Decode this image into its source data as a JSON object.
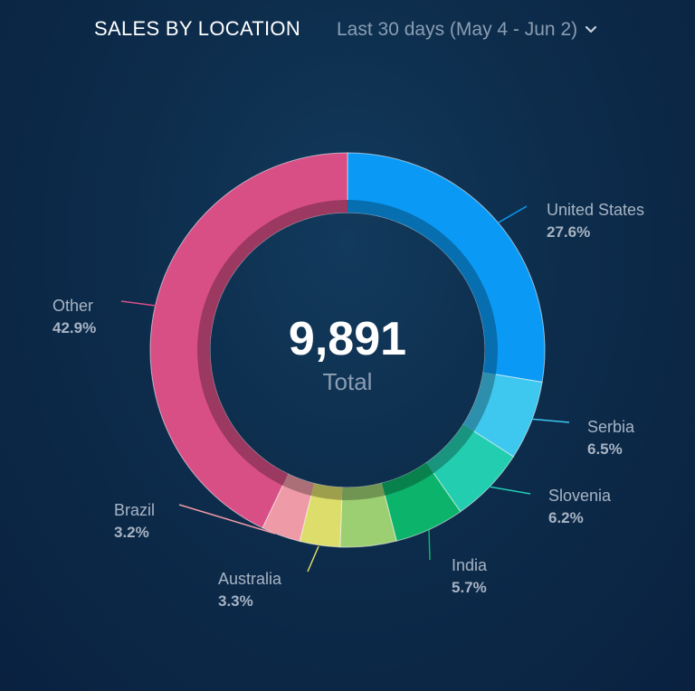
{
  "header": {
    "title": "SALES BY LOCATION",
    "date_range": "Last 30 days (May 4 - Jun 2)",
    "dropdown_icon": "chevron-down-icon"
  },
  "center": {
    "value": "9,891",
    "label": "Total"
  },
  "chart_data": {
    "type": "pie",
    "style": "donut",
    "total": 9891,
    "slices": [
      {
        "name": "United States",
        "label": "27.6%",
        "value": 27.6,
        "color": "#0a9af5"
      },
      {
        "name": "Serbia",
        "label": "6.5%",
        "value": 6.5,
        "color": "#3ec7ef"
      },
      {
        "name": "Slovenia",
        "label": "6.2%",
        "value": 6.2,
        "color": "#23cdb0"
      },
      {
        "name": "India",
        "label": "5.7%",
        "value": 5.7,
        "color": "#0bb36b"
      },
      {
        "name": "",
        "label": "",
        "value": 4.6,
        "color": "#9ccf72"
      },
      {
        "name": "Australia",
        "label": "3.3%",
        "value": 3.3,
        "color": "#dcdd6a"
      },
      {
        "name": "Brazil",
        "label": "3.2%",
        "value": 3.2,
        "color": "#ee9aa7"
      },
      {
        "name": "Other",
        "label": "42.9%",
        "value": 42.9,
        "color": "#d84f86"
      }
    ]
  }
}
